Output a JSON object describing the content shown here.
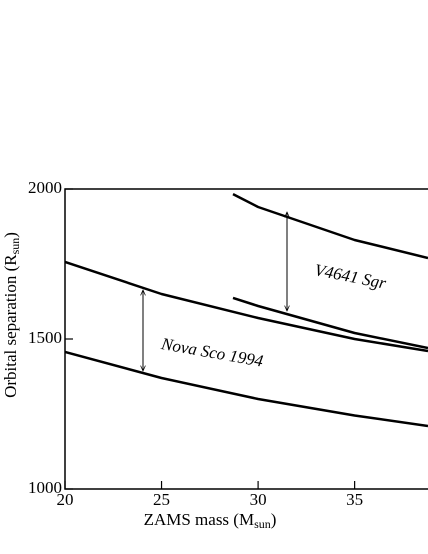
{
  "chart_data": {
    "type": "line",
    "x_label": {
      "text": "ZAMS mass (M",
      "sub": "sun",
      "close": ")"
    },
    "y_label": {
      "text": "Orbital separation (R",
      "sub": "sun",
      "close": ")"
    },
    "xlim": [
      20,
      38.8
    ],
    "xticks": [
      20,
      25,
      30,
      35
    ],
    "ylim": [
      1000,
      2000
    ],
    "yticks": [
      1000,
      1500,
      2000
    ],
    "series": [
      {
        "color": "#000000",
        "x": [
          20,
          25,
          30,
          35,
          38.8
        ],
        "values": [
          1457,
          1370,
          1300,
          1245,
          1210
        ]
      },
      {
        "color": "#000000",
        "x": [
          20,
          25,
          30,
          35,
          38.8
        ],
        "values": [
          1757,
          1650,
          1570,
          1500,
          1460
        ]
      },
      {
        "color": "#000000",
        "x": [
          28.7,
          30,
          35,
          38.8
        ],
        "values": [
          1637,
          1610,
          1520,
          1470
        ]
      },
      {
        "color": "#000000",
        "x": [
          28.7,
          30,
          35,
          38.8
        ],
        "values": [
          1983,
          1940,
          1830,
          1770
        ]
      }
    ],
    "annotations": [
      {
        "text": "Nova Sco 1994"
      },
      {
        "text": "V4641 Sgr"
      }
    ]
  }
}
